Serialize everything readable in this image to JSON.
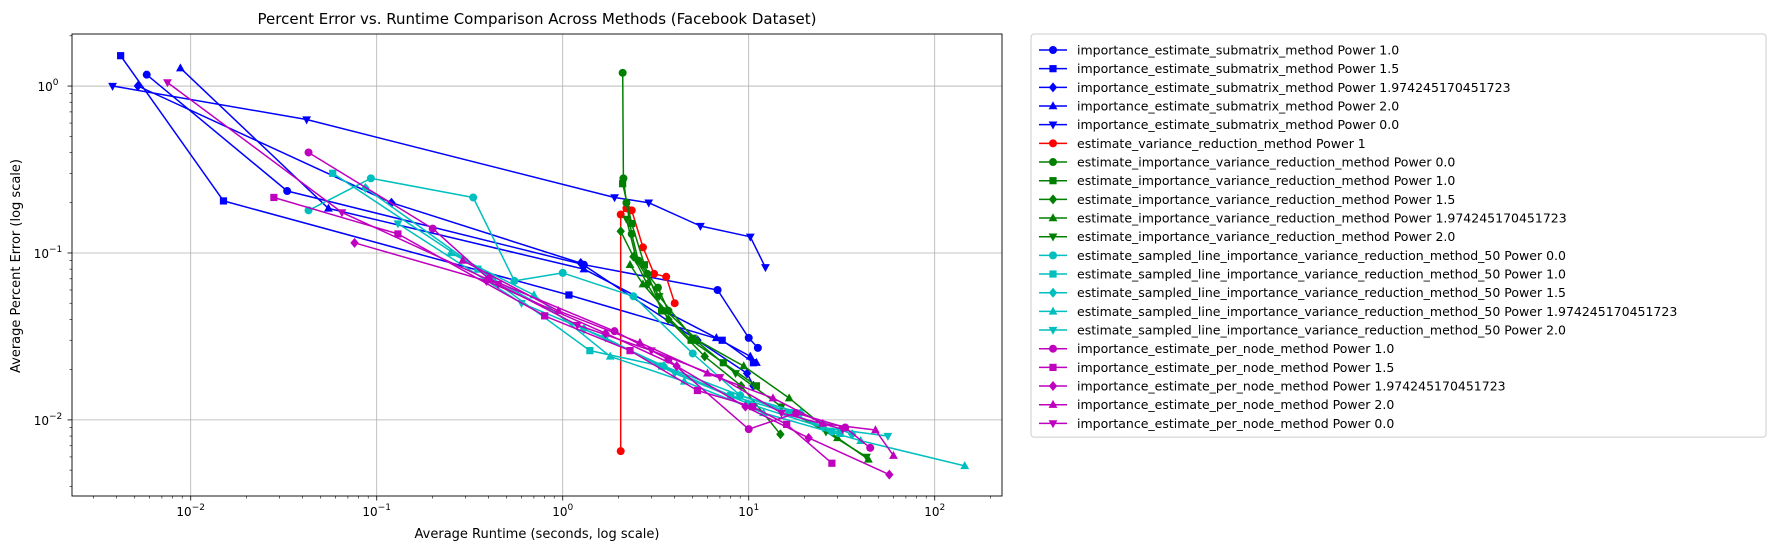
{
  "chart_data": {
    "type": "line",
    "title": "Percent Error vs. Runtime Comparison Across Methods (Facebook Dataset)",
    "xlabel": "Average Runtime (seconds, log scale)",
    "ylabel": "Average Percent Error (log scale)",
    "xscale": "log",
    "yscale": "log",
    "xlim": [
      0.0023,
      230
    ],
    "ylim": [
      0.0035,
      2.05
    ],
    "grid": true,
    "legend_position": "outside-right",
    "x_ticks": [
      0.01,
      0.1,
      1,
      10,
      100
    ],
    "x_tick_labels": [
      "10",
      "10",
      "10",
      "10",
      "10"
    ],
    "x_tick_exponents": [
      "−2",
      "−1",
      "0",
      "1",
      "2"
    ],
    "y_ticks": [
      0.01,
      0.1,
      1
    ],
    "y_tick_labels": [
      "10",
      "10",
      "10"
    ],
    "y_tick_exponents": [
      "−2",
      "−1",
      "0"
    ],
    "series": [
      {
        "name": "importance_estimate_submatrix_method Power 1.0",
        "color": "#0000ff",
        "marker": "circle",
        "x": [
          0.0058,
          0.033,
          1.3,
          6.8,
          10.0,
          11.2
        ],
        "y": [
          1.17,
          0.235,
          0.085,
          0.06,
          0.031,
          0.027
        ]
      },
      {
        "name": "importance_estimate_submatrix_method Power 1.5",
        "color": "#0000ff",
        "marker": "square",
        "x": [
          0.0042,
          0.015,
          1.08,
          7.2,
          10.6
        ],
        "y": [
          1.52,
          0.205,
          0.056,
          0.03,
          0.022
        ]
      },
      {
        "name": "importance_estimate_submatrix_method Power 1.974245170451723",
        "color": "#0000ff",
        "marker": "diamond",
        "x": [
          0.0052,
          0.12,
          1.25,
          5.3,
          9.8,
          10.6
        ],
        "y": [
          1.0,
          0.2,
          0.087,
          0.03,
          0.019,
          0.016
        ]
      },
      {
        "name": "importance_estimate_submatrix_method Power 2.0",
        "color": "#0000ff",
        "marker": "triangle-up",
        "x": [
          0.0088,
          0.055,
          1.3,
          6.7,
          10.2,
          11.0
        ],
        "y": [
          1.28,
          0.185,
          0.08,
          0.031,
          0.024,
          0.022
        ]
      },
      {
        "name": "importance_estimate_submatrix_method Power 0.0",
        "color": "#0000ff",
        "marker": "triangle-down",
        "x": [
          0.0038,
          0.042,
          1.9,
          2.9,
          5.5,
          10.2,
          12.3
        ],
        "y": [
          1.0,
          0.63,
          0.215,
          0.2,
          0.145,
          0.125,
          0.082
        ]
      },
      {
        "name": "estimate_variance_reduction_method Power 1",
        "color": "#ff0000",
        "marker": "circle",
        "x": [
          2.05,
          2.05,
          2.2,
          2.35,
          2.7,
          3.1,
          3.6,
          4.0
        ],
        "y": [
          0.0065,
          0.17,
          0.185,
          0.18,
          0.108,
          0.075,
          0.072,
          0.05
        ]
      },
      {
        "name": "estimate_importance_variance_reduction_method Power 0.0",
        "color": "#008000",
        "marker": "circle",
        "x": [
          2.1,
          2.12,
          2.2,
          2.35,
          2.55,
          2.85,
          3.25,
          3.7
        ],
        "y": [
          1.2,
          0.28,
          0.2,
          0.13,
          0.09,
          0.075,
          0.062,
          0.045
        ]
      },
      {
        "name": "estimate_importance_variance_reduction_method Power 1.0",
        "color": "#008000",
        "marker": "square",
        "x": [
          2.1,
          2.35,
          2.75,
          3.4,
          4.9,
          7.3,
          11.0
        ],
        "y": [
          0.26,
          0.15,
          0.085,
          0.045,
          0.03,
          0.022,
          0.016
        ]
      },
      {
        "name": "estimate_importance_variance_reduction_method Power 1.5",
        "color": "#008000",
        "marker": "diamond",
        "x": [
          2.05,
          2.4,
          2.85,
          3.7,
          5.8,
          9.1,
          14.8
        ],
        "y": [
          0.135,
          0.095,
          0.065,
          0.04,
          0.024,
          0.016,
          0.0082
        ]
      },
      {
        "name": "estimate_importance_variance_reduction_method Power 1.974245170451723",
        "color": "#008000",
        "marker": "triangle-up",
        "x": [
          2.3,
          2.7,
          3.6,
          5.3,
          9.4,
          16.5,
          30.0,
          44.0
        ],
        "y": [
          0.085,
          0.065,
          0.045,
          0.03,
          0.021,
          0.0135,
          0.0078,
          0.0058
        ]
      },
      {
        "name": "estimate_importance_variance_reduction_method Power 2.0",
        "color": "#008000",
        "marker": "triangle-down",
        "x": [
          2.2,
          2.5,
          3.3,
          5.0,
          8.5,
          15.0,
          26.0,
          43.0
        ],
        "y": [
          0.16,
          0.09,
          0.055,
          0.031,
          0.019,
          0.012,
          0.0085,
          0.006
        ]
      },
      {
        "name": "estimate_sampled_line_importance_variance_reduction_method_50 Power 0.0",
        "color": "#00bfbf",
        "marker": "circle",
        "x": [
          0.043,
          0.093,
          0.33,
          0.55,
          1.0,
          2.4,
          5.0,
          9.0,
          17.0,
          28.0
        ],
        "y": [
          0.18,
          0.28,
          0.215,
          0.068,
          0.076,
          0.055,
          0.025,
          0.014,
          0.011,
          0.0085
        ]
      },
      {
        "name": "estimate_sampled_line_importance_variance_reduction_method_50 Power 1.0",
        "color": "#00bfbf",
        "marker": "square",
        "x": [
          0.058,
          0.35,
          1.4,
          3.4,
          8.0,
          16.5,
          31.0
        ],
        "y": [
          0.3,
          0.08,
          0.026,
          0.021,
          0.014,
          0.011,
          0.0083
        ]
      },
      {
        "name": "estimate_sampled_line_importance_variance_reduction_method_50 Power 1.5",
        "color": "#00bfbf",
        "marker": "diamond",
        "x": [
          0.087,
          0.42,
          1.3,
          3.5,
          9.0,
          19.0,
          36.0
        ],
        "y": [
          0.245,
          0.07,
          0.035,
          0.021,
          0.014,
          0.011,
          0.0082
        ]
      },
      {
        "name": "estimate_sampled_line_importance_variance_reduction_method_50 Power 1.974245170451723",
        "color": "#00bfbf",
        "marker": "triangle-up",
        "x": [
          0.25,
          0.7,
          1.8,
          4.5,
          12.0,
          40.0,
          145.0
        ],
        "y": [
          0.1,
          0.056,
          0.024,
          0.017,
          0.011,
          0.0075,
          0.0053
        ]
      },
      {
        "name": "estimate_sampled_line_importance_variance_reduction_method_50 Power 2.0",
        "color": "#00bfbf",
        "marker": "triangle-down",
        "x": [
          0.13,
          0.6,
          1.7,
          4.0,
          10.0,
          25.0,
          56.0
        ],
        "y": [
          0.15,
          0.05,
          0.031,
          0.019,
          0.0125,
          0.009,
          0.008
        ]
      },
      {
        "name": "importance_estimate_per_node_method Power 1.0",
        "color": "#bf00bf",
        "marker": "circle",
        "x": [
          0.043,
          0.2,
          0.4,
          1.9,
          3.7,
          10.0,
          18.0,
          33.0,
          45.0
        ],
        "y": [
          0.4,
          0.14,
          0.07,
          0.034,
          0.023,
          0.0088,
          0.011,
          0.009,
          0.0068
        ]
      },
      {
        "name": "importance_estimate_per_node_method Power 1.5",
        "color": "#bf00bf",
        "marker": "square",
        "x": [
          0.028,
          0.13,
          0.8,
          2.3,
          5.3,
          10.5,
          16.0,
          28.0
        ],
        "y": [
          0.215,
          0.13,
          0.042,
          0.026,
          0.015,
          0.012,
          0.0094,
          0.0055
        ]
      },
      {
        "name": "importance_estimate_per_node_method Power 1.974245170451723",
        "color": "#bf00bf",
        "marker": "diamond",
        "x": [
          0.076,
          0.39,
          1.7,
          4.1,
          9.6,
          21.0,
          57.0
        ],
        "y": [
          0.115,
          0.068,
          0.033,
          0.021,
          0.012,
          0.0078,
          0.0047
        ]
      },
      {
        "name": "importance_estimate_per_node_method Power 2.0",
        "color": "#bf00bf",
        "marker": "triangle-up",
        "x": [
          0.29,
          0.95,
          2.6,
          6.0,
          13.5,
          25.0,
          48.0,
          60.0
        ],
        "y": [
          0.09,
          0.045,
          0.029,
          0.019,
          0.0135,
          0.0095,
          0.0087,
          0.0061
        ]
      },
      {
        "name": "importance_estimate_per_node_method Power 0.0",
        "color": "#bf00bf",
        "marker": "triangle-down",
        "x": [
          0.0075,
          0.065,
          0.45,
          1.2,
          3.0,
          7.0,
          15.0,
          32.0
        ],
        "y": [
          1.05,
          0.175,
          0.065,
          0.037,
          0.026,
          0.018,
          0.011,
          0.0088
        ]
      }
    ]
  }
}
